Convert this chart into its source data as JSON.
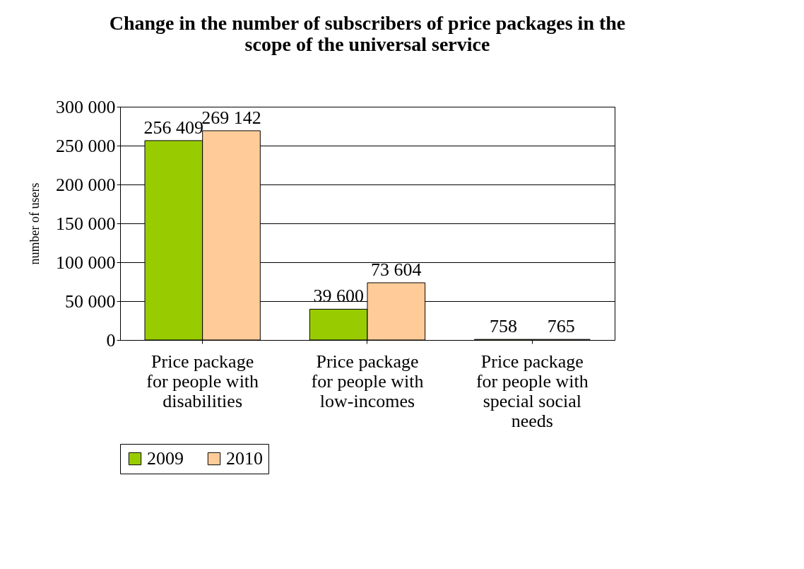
{
  "chart_data": {
    "type": "bar",
    "title": "Change in the number of subscribers of price packages in the scope of the universal service",
    "ylabel": "number of users",
    "categories": [
      "Price package for people with disabilities",
      "Price package for people with low-incomes",
      "Price package for people with special social needs"
    ],
    "series": [
      {
        "name": "2009",
        "color": "#99cc00",
        "values": [
          256409,
          39600,
          758
        ],
        "value_labels": [
          "256 409",
          "39 600",
          "758"
        ]
      },
      {
        "name": "2010",
        "color": "#ffcc99",
        "values": [
          269142,
          73604,
          765
        ],
        "value_labels": [
          "269 142",
          "73 604",
          "765"
        ]
      }
    ],
    "ylim": [
      0,
      300000
    ],
    "yticks": [
      0,
      {
        "value": 50000,
        "label": "50 000"
      },
      {
        "value": 100000,
        "label": "100 000"
      },
      {
        "value": 150000,
        "label": "150 000"
      },
      {
        "value": 200000,
        "label": "200 000"
      },
      {
        "value": 250000,
        "label": "250 000"
      },
      {
        "value": 300000,
        "label": "300 000"
      }
    ],
    "grid": "y",
    "legend": "bottom"
  }
}
